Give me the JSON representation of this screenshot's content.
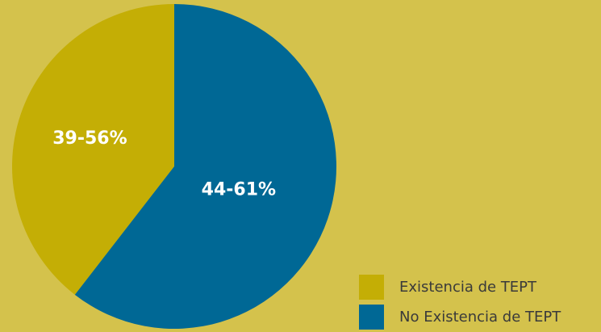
{
  "chart_data": {
    "type": "pie",
    "slices": [
      {
        "label": "Existencia de TEPT",
        "data_label": "39-56%",
        "value": 39.5,
        "color": "#c4ae05"
      },
      {
        "label": "No Existencia de TEPT",
        "data_label": "44-61%",
        "value": 60.5,
        "color": "#006895"
      }
    ],
    "title": "",
    "legend_position": "bottom-right"
  },
  "colors": {
    "background": "#d4c24c",
    "label_text": "#ffffff"
  }
}
